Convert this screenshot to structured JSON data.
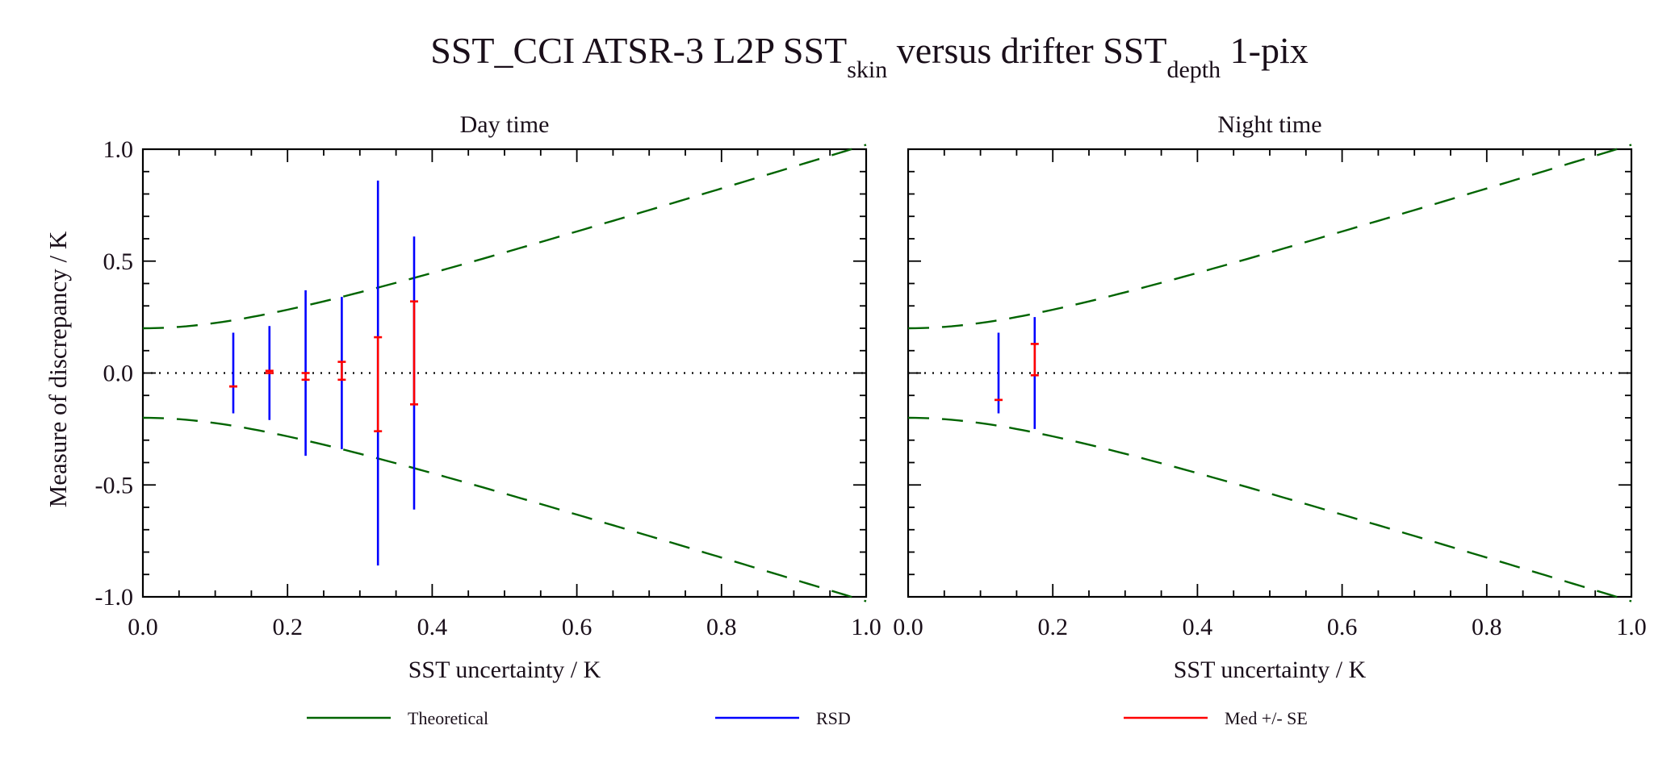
{
  "title": {
    "main": "SST_CCI ATSR-3 L2P SST",
    "sub1": "skin",
    "mid": " versus drifter SST",
    "sub2": "depth",
    "tail": " 1-pix"
  },
  "ylabel": "Measure of discrepancy / K",
  "colors": {
    "theoretical": "#006400",
    "rsd": "#0000ff",
    "med_se": "#ff0000",
    "zero_line": "#000000"
  },
  "legend": {
    "placement": "bottom",
    "items": [
      {
        "label": "Theoretical",
        "color": "#006400"
      },
      {
        "label": "RSD",
        "color": "#0000ff"
      },
      {
        "label": "Med +/- SE",
        "color": "#ff0000"
      }
    ]
  },
  "chart_data": [
    {
      "type": "scatter",
      "title": "Day time",
      "xlabel": "SST uncertainty / K",
      "ylabel": "Measure of discrepancy / K",
      "xlim": [
        0.0,
        1.0
      ],
      "ylim": [
        -1.0,
        1.0
      ],
      "xticks": [
        "0.0",
        "0.2",
        "0.4",
        "0.6",
        "0.8",
        "1.0"
      ],
      "yticks": [
        "-1.0",
        "-0.5",
        "0.0",
        "0.5",
        "1.0"
      ],
      "theoretical": "±sqrt(x² + 0.2²)",
      "zero_line": 0.0,
      "rsd": [
        {
          "x": 0.125,
          "low": -0.18,
          "high": 0.18
        },
        {
          "x": 0.175,
          "low": -0.21,
          "high": 0.21
        },
        {
          "x": 0.225,
          "low": -0.37,
          "high": 0.37
        },
        {
          "x": 0.275,
          "low": -0.34,
          "high": 0.34
        },
        {
          "x": 0.325,
          "low": -0.86,
          "high": 0.86
        },
        {
          "x": 0.375,
          "low": -0.61,
          "high": 0.61
        }
      ],
      "med_se": [
        {
          "x": 0.125,
          "low": -0.06,
          "high": -0.06
        },
        {
          "x": 0.175,
          "low": 0.0,
          "high": 0.01
        },
        {
          "x": 0.225,
          "low": -0.03,
          "high": 0.0
        },
        {
          "x": 0.275,
          "low": -0.03,
          "high": 0.05
        },
        {
          "x": 0.325,
          "low": -0.26,
          "high": 0.16
        },
        {
          "x": 0.375,
          "low": -0.14,
          "high": 0.32
        }
      ]
    },
    {
      "type": "scatter",
      "title": "Night time",
      "xlabel": "SST uncertainty / K",
      "xlim": [
        0.0,
        1.0
      ],
      "ylim": [
        -1.0,
        1.0
      ],
      "xticks": [
        "0.0",
        "0.2",
        "0.4",
        "0.6",
        "0.8",
        "1.0"
      ],
      "theoretical": "±sqrt(x² + 0.2²)",
      "zero_line": 0.0,
      "rsd": [
        {
          "x": 0.125,
          "low": -0.18,
          "high": 0.18
        },
        {
          "x": 0.175,
          "low": -0.25,
          "high": 0.25
        }
      ],
      "med_se": [
        {
          "x": 0.125,
          "low": -0.12,
          "high": -0.12
        },
        {
          "x": 0.175,
          "low": -0.01,
          "high": 0.13
        }
      ]
    }
  ]
}
